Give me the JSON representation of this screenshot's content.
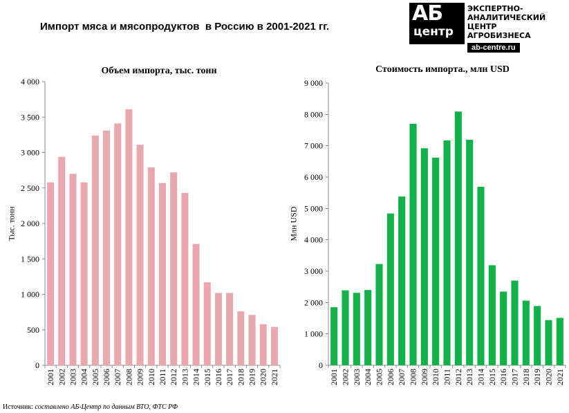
{
  "header": {
    "title": "Импорт мяса и мясопродуктов  в Россию в 2001-2021 гг."
  },
  "logo": {
    "mark_top": "АБ",
    "mark_bottom": "центр",
    "lines": [
      "ЭКСПЕРТНО-",
      "АНАЛИТИЧЕСКИЙ",
      "ЦЕНТР",
      "АГРОБИЗНЕСА"
    ],
    "url": "ab-centre.ru"
  },
  "footer": {
    "source_label": "Источник:",
    "source_text": " составлено АБ-Центр по данным ВТО, ФТС РФ"
  },
  "chart_data": [
    {
      "type": "bar",
      "title": "Объем импорта, тыс. тонн",
      "xlabel": "",
      "ylabel": "Тыс. тонн",
      "categories": [
        "2001",
        "2002",
        "2003",
        "2004",
        "2005",
        "2006",
        "2007",
        "2008",
        "2009",
        "2010",
        "2011",
        "2012",
        "2013",
        "2014",
        "2015",
        "2016",
        "2017",
        "2018",
        "2019",
        "2020",
        "2021"
      ],
      "values": [
        2580,
        2940,
        2700,
        2580,
        3240,
        3310,
        3410,
        3610,
        3110,
        2790,
        2570,
        2720,
        2430,
        1710,
        1170,
        1020,
        1020,
        760,
        710,
        580,
        540
      ],
      "ylim": [
        0,
        4000
      ],
      "yticks": [
        "0",
        "500",
        "1 000",
        "1 500",
        "2 000",
        "2 500",
        "3 000",
        "3 500",
        "4 000"
      ],
      "color": "#E8A8AE",
      "grid": false
    },
    {
      "type": "bar",
      "title": "Стоимость импорта., млн USD",
      "xlabel": "",
      "ylabel": "Млн USD",
      "categories": [
        "2001",
        "2002",
        "2003",
        "2004",
        "2005",
        "2006",
        "2007",
        "2008",
        "2009",
        "2010",
        "2011",
        "2012",
        "2013",
        "2014",
        "2015",
        "2016",
        "2017",
        "2018",
        "2019",
        "2020",
        "2021"
      ],
      "values": [
        1850,
        2390,
        2310,
        2400,
        3230,
        4840,
        5380,
        7700,
        6920,
        6620,
        7170,
        8090,
        7190,
        5690,
        3190,
        2350,
        2700,
        2060,
        1890,
        1440,
        1510
      ],
      "ylim": [
        0,
        9000
      ],
      "yticks": [
        "0",
        "1 000",
        "2 000",
        "3 000",
        "4 000",
        "5 000",
        "6 000",
        "7 000",
        "8 000",
        "9 000"
      ],
      "color": "#12B14A",
      "grid": false
    }
  ]
}
